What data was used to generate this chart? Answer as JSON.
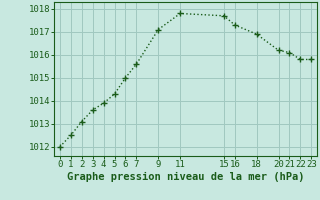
{
  "x": [
    0,
    1,
    2,
    3,
    4,
    5,
    6,
    7,
    9,
    11,
    15,
    16,
    18,
    20,
    21,
    22,
    23
  ],
  "y": [
    1012.0,
    1012.5,
    1013.1,
    1013.6,
    1013.9,
    1014.3,
    1015.0,
    1015.6,
    1017.1,
    1017.8,
    1017.7,
    1017.3,
    1016.9,
    1016.2,
    1016.1,
    1015.8,
    1015.8
  ],
  "line_color": "#1a5c1a",
  "marker": "+",
  "marker_color": "#1a5c1a",
  "bg_color": "#c8e8e0",
  "grid_color": "#a0c8c0",
  "xlabel": "Graphe pression niveau de la mer (hPa)",
  "xlabel_color": "#1a5c1a",
  "xticks": [
    0,
    1,
    2,
    3,
    4,
    5,
    6,
    7,
    9,
    11,
    15,
    16,
    18,
    20,
    21,
    22,
    23
  ],
  "yticks": [
    1012,
    1013,
    1014,
    1015,
    1016,
    1017,
    1018
  ],
  "ylim": [
    1011.6,
    1018.3
  ],
  "xlim": [
    -0.5,
    23.5
  ],
  "tick_color": "#1a5c1a",
  "spine_color": "#1a5c1a",
  "fontsize_xlabel": 7.5,
  "fontsize_ticks": 6.5,
  "linewidth": 1.0,
  "markersize": 4.5
}
